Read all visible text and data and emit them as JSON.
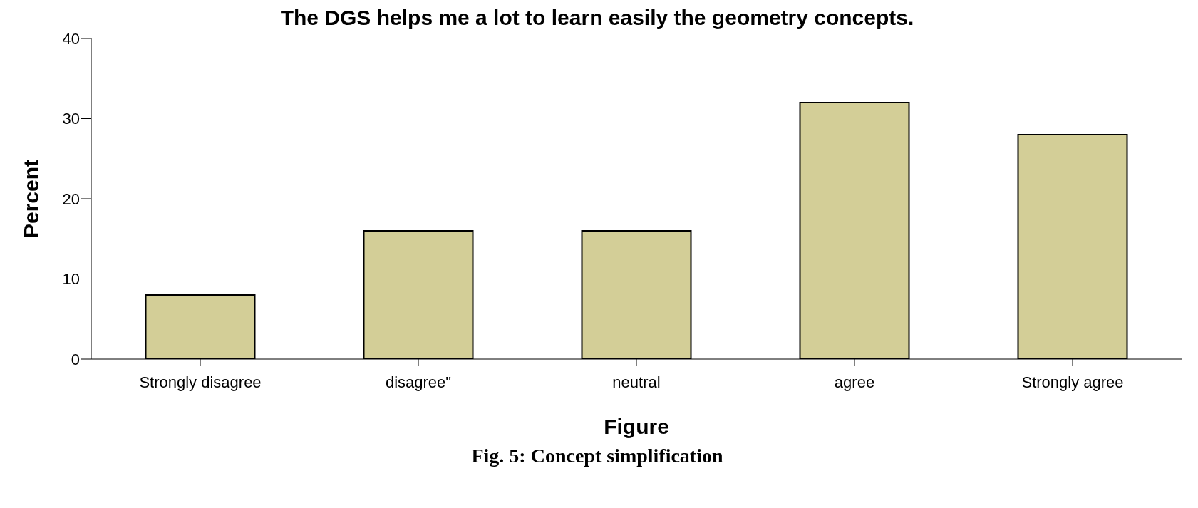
{
  "chart_data": {
    "type": "bar",
    "title": "The DGS helps me a lot to learn easily the geometry concepts.",
    "xlabel": "Figure",
    "ylabel": "Percent",
    "categories": [
      "Strongly disagree",
      "disagree\"",
      "neutral",
      "agree",
      "Strongly agree"
    ],
    "values": [
      8,
      16,
      16,
      32,
      28
    ],
    "color": "#d3ce97",
    "ylim": [
      0,
      40
    ],
    "yticks": [
      0,
      10,
      20,
      30,
      40
    ],
    "grid": false,
    "annotations": [
      "Fig. 5: Concept simplification"
    ]
  }
}
